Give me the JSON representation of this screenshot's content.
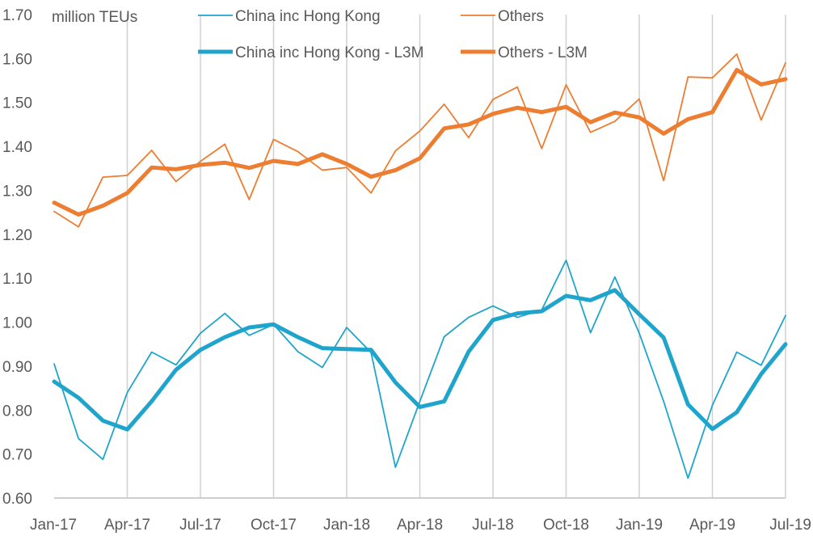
{
  "chart_data": {
    "type": "line",
    "unit_label": "million TEUs",
    "x": [
      "Jan-17",
      "Feb-17",
      "Mar-17",
      "Apr-17",
      "May-17",
      "Jun-17",
      "Jul-17",
      "Aug-17",
      "Sep-17",
      "Oct-17",
      "Nov-17",
      "Dec-17",
      "Jan-18",
      "Feb-18",
      "Mar-18",
      "Apr-18",
      "May-18",
      "Jun-18",
      "Jul-18",
      "Aug-18",
      "Sep-18",
      "Oct-18",
      "Nov-18",
      "Dec-18",
      "Jan-19",
      "Feb-19",
      "Mar-19",
      "Apr-19",
      "May-19",
      "Jun-19",
      "Jul-19"
    ],
    "x_tick_labels": [
      "Jan-17",
      "Apr-17",
      "Jul-17",
      "Oct-17",
      "Jan-18",
      "Apr-18",
      "Jul-18",
      "Oct-18",
      "Jan-19",
      "Apr-19",
      "Jul-19"
    ],
    "y_tick_labels": [
      "0.60",
      "0.70",
      "0.80",
      "0.90",
      "1.00",
      "1.10",
      "1.20",
      "1.30",
      "1.40",
      "1.50",
      "1.60",
      "1.70"
    ],
    "ylim": [
      0.6,
      1.7
    ],
    "vertical_grid": true,
    "legend_position": "top",
    "series": [
      {
        "name": "China inc Hong Kong",
        "color": "#1fa5cc",
        "width": "thin",
        "values": [
          0.905,
          0.735,
          0.688,
          0.84,
          0.932,
          0.903,
          0.975,
          1.02,
          0.97,
          0.995,
          0.933,
          0.897,
          0.988,
          0.931,
          0.67,
          0.82,
          0.967,
          1.011,
          1.037,
          1.011,
          1.028,
          1.141,
          0.976,
          1.103,
          0.975,
          0.82,
          0.645,
          0.811,
          0.932,
          0.902,
          1.015
        ]
      },
      {
        "name": "Others",
        "color": "#ed7d31",
        "width": "thin",
        "values": [
          1.252,
          1.217,
          1.33,
          1.334,
          1.391,
          1.32,
          1.366,
          1.405,
          1.279,
          1.416,
          1.388,
          1.346,
          1.352,
          1.294,
          1.39,
          1.435,
          1.496,
          1.42,
          1.507,
          1.535,
          1.395,
          1.54,
          1.432,
          1.457,
          1.508,
          1.322,
          1.558,
          1.556,
          1.61,
          1.46,
          1.59
        ]
      },
      {
        "name": "China inc Hong Kong - L3M",
        "color": "#1fa5cc",
        "width": "thick",
        "values": [
          0.865,
          0.828,
          0.776,
          0.756,
          0.82,
          0.892,
          0.937,
          0.966,
          0.988,
          0.995,
          0.966,
          0.941,
          0.939,
          0.937,
          0.863,
          0.807,
          0.82,
          0.933,
          1.005,
          1.02,
          1.025,
          1.06,
          1.05,
          1.073,
          1.018,
          0.965,
          0.813,
          0.757,
          0.795,
          0.882,
          0.95
        ]
      },
      {
        "name": "Others - L3M",
        "color": "#ed7d31",
        "width": "thick",
        "values": [
          1.272,
          1.245,
          1.265,
          1.294,
          1.352,
          1.348,
          1.358,
          1.363,
          1.351,
          1.367,
          1.36,
          1.382,
          1.36,
          1.331,
          1.346,
          1.373,
          1.441,
          1.45,
          1.474,
          1.488,
          1.478,
          1.49,
          1.455,
          1.477,
          1.466,
          1.429,
          1.462,
          1.478,
          1.574,
          1.541,
          1.553
        ]
      }
    ]
  }
}
